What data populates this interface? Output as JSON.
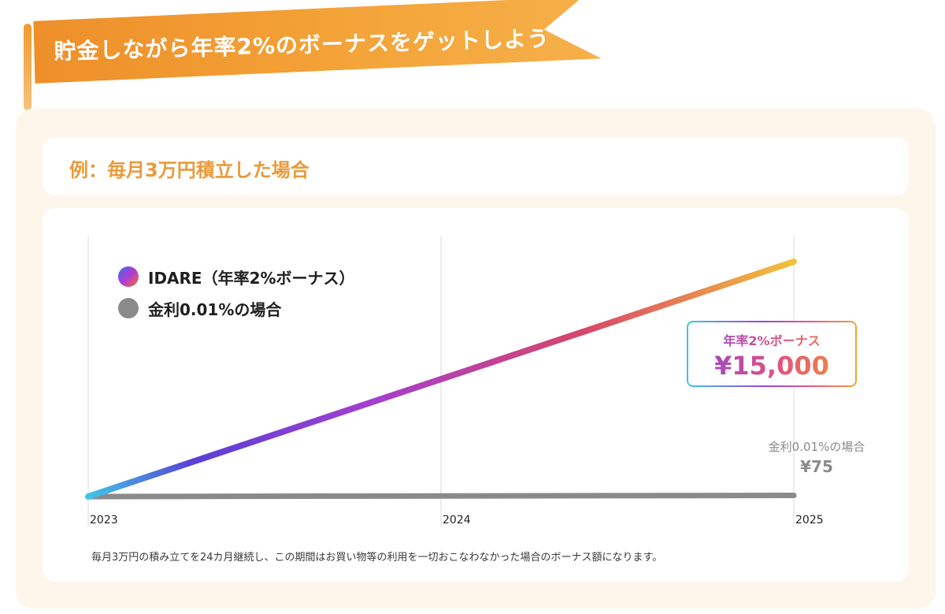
{
  "banner": {
    "title": "貯金しながら年率2%のボーナスをゲットしよう"
  },
  "example": {
    "text": "例：毎月3万円積立した場合"
  },
  "legend": {
    "idare_label": "IDARE（年率2%ボーナス）",
    "interest_label": "金利0.01%の場合"
  },
  "callouts": {
    "bonus_label": "年率2%ボーナス",
    "bonus_value": "¥15,000",
    "interest_label": "金利0.01%の場合",
    "interest_value": "¥75"
  },
  "footnote": "毎月3万円の積み立てを24カ月継続し、この期間はお買い物等の利用を一切おこなわなかった場合のボーナス額になります。",
  "colors": {
    "accent": "#f09a2c",
    "interest_line": "#8a8a8a",
    "idare_gradient": [
      "#3ec6e6",
      "#5a3fd6",
      "#a33fd0",
      "#d8456a",
      "#f2c23a"
    ]
  },
  "chart_data": {
    "type": "line",
    "x": [
      "2023",
      "2024",
      "2025"
    ],
    "series": [
      {
        "name": "IDARE（年率2%ボーナス）",
        "x": [
          "2023",
          "2025"
        ],
        "values": [
          0,
          15000
        ]
      },
      {
        "name": "金利0.01%の場合",
        "x": [
          "2023",
          "2025"
        ],
        "values": [
          0,
          75
        ]
      }
    ],
    "xlabel": "",
    "ylabel": "",
    "ylim": [
      0,
      17000
    ],
    "grid": "vertical",
    "legend_position": "top-left"
  }
}
